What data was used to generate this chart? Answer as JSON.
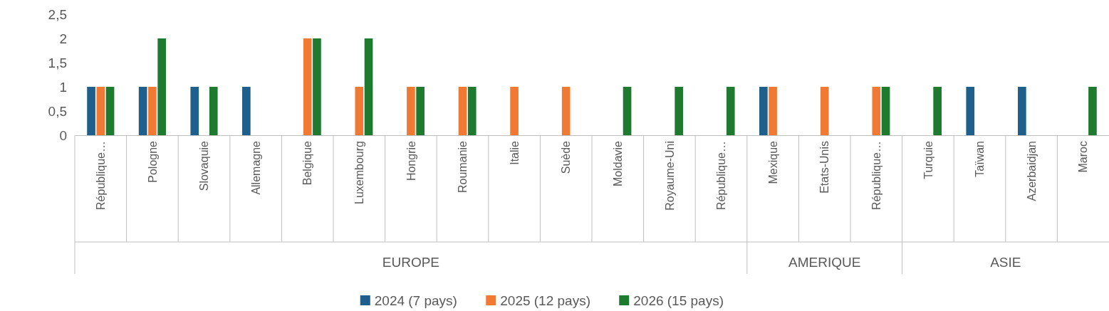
{
  "chart_data": {
    "type": "bar",
    "categories": [
      "République…",
      "Pologne",
      "Slovaquie",
      "Allemagne",
      "Belgique",
      "Luxembourg",
      "Hongrie",
      "Roumanie",
      "Italie",
      "Suède",
      "Moldavie",
      "Royaume-Uni",
      "République…",
      "Mexique",
      "Etats-Unis",
      "République…",
      "Turquie",
      "Taïwan",
      "Azerbaidjan",
      "Maroc"
    ],
    "series": [
      {
        "name": "2024 (7 pays)",
        "color": "#1f5f8b",
        "values": [
          1,
          1,
          1,
          1,
          null,
          null,
          null,
          null,
          null,
          null,
          null,
          null,
          null,
          1,
          null,
          null,
          null,
          1,
          1,
          null
        ]
      },
      {
        "name": "2025 (12 pays)",
        "color": "#f07a33",
        "values": [
          1,
          1,
          null,
          null,
          2,
          1,
          1,
          1,
          1,
          1,
          null,
          null,
          null,
          1,
          1,
          1,
          null,
          null,
          null,
          null
        ]
      },
      {
        "name": "2026 (15 pays)",
        "color": "#1e7a2e",
        "values": [
          1,
          2,
          1,
          null,
          2,
          2,
          1,
          1,
          null,
          null,
          1,
          1,
          1,
          null,
          null,
          1,
          1,
          null,
          null,
          1
        ]
      }
    ],
    "ylim": [
      0,
      2.5
    ],
    "yticks": [
      0,
      {
        "value": 0.5,
        "label": "0,5"
      },
      1,
      {
        "value": 1.5,
        "label": "1,5"
      },
      2,
      {
        "value": 2.5,
        "label": "2,5"
      }
    ],
    "annotations": [
      "EUROPE",
      "AMERIQUE",
      "ASIE"
    ],
    "grid": false,
    "legend": "bottom"
  }
}
